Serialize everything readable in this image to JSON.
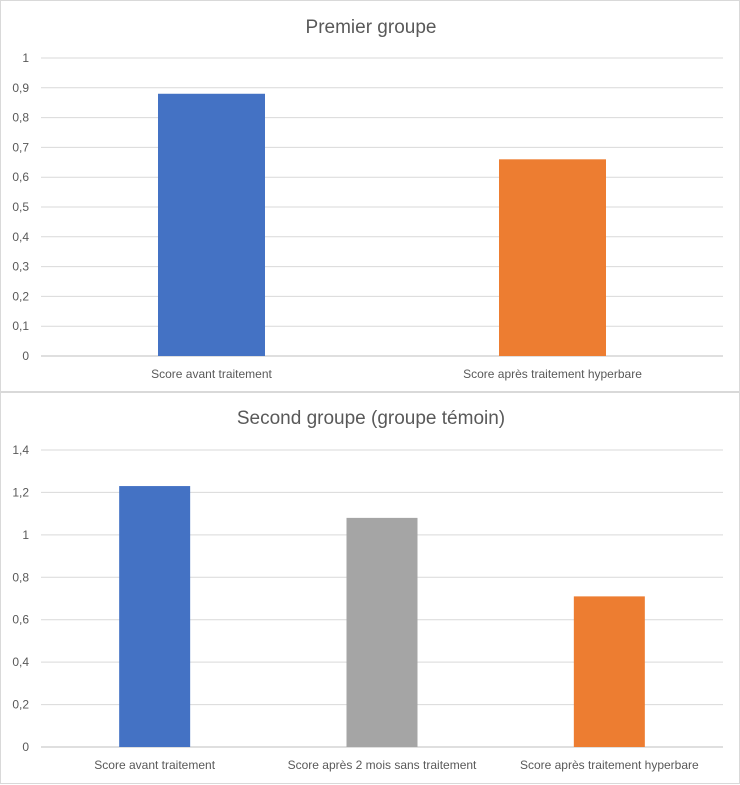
{
  "chart_data": [
    {
      "type": "bar",
      "title": "Premier groupe",
      "categories": [
        "Score avant traitement",
        "Score après traitement hyperbare"
      ],
      "values": [
        0.88,
        0.66
      ],
      "colors": [
        "#4472c4",
        "#ed7d31"
      ],
      "ylim": [
        0,
        1
      ],
      "yticks": [
        "0",
        "0,1",
        "0,2",
        "0,3",
        "0,4",
        "0,5",
        "0,6",
        "0,7",
        "0,8",
        "0,9",
        "1"
      ],
      "grid": true,
      "legend": "none"
    },
    {
      "type": "bar",
      "title": "Second groupe (groupe témoin)",
      "categories": [
        "Score avant traitement",
        "Score après 2 mois sans traitement",
        "Score après traitement hyperbare"
      ],
      "values": [
        1.23,
        1.08,
        0.71
      ],
      "colors": [
        "#4472c4",
        "#a5a5a5",
        "#ed7d31"
      ],
      "ylim": [
        0,
        1.4
      ],
      "yticks": [
        "0",
        "0,2",
        "0,4",
        "0,6",
        "0,8",
        "1",
        "1,2",
        "1,4"
      ],
      "grid": true,
      "legend": "none"
    }
  ]
}
